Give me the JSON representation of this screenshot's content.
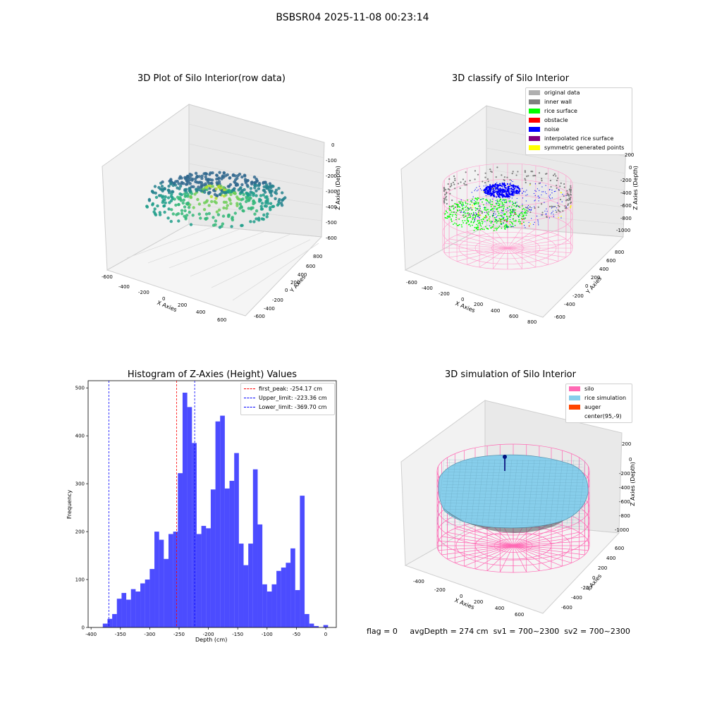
{
  "figure": {
    "suptitle": "BSBSR04 2025-11-08 00:23:14"
  },
  "plot1": {
    "title": "3D Plot of Silo Interior(row data)",
    "xlabel": "X Axies",
    "ylabel": "Y Axies",
    "zlabel": "Z Axies (Depth)",
    "xticks": [
      "-600",
      "-400",
      "-200",
      "0",
      "200",
      "400",
      "600"
    ],
    "yticks": [
      "800",
      "600",
      "400",
      "200",
      "0",
      "-200",
      "-400",
      "-600"
    ],
    "zticks": [
      "0",
      "-100",
      "-200",
      "-300",
      "-400",
      "-500",
      "-600"
    ],
    "colormap": [
      "#fde725",
      "#b5de2b",
      "#6ece58",
      "#35b779",
      "#1f9e89",
      "#26828e",
      "#31688e"
    ]
  },
  "plot2": {
    "title": "3D classify of Silo Interior",
    "xlabel": "X Axies",
    "ylabel": "Y Axies",
    "zlabel": "Z Axies (Depth)",
    "xticks": [
      "-600",
      "-400",
      "-200",
      "0",
      "200",
      "400",
      "600",
      "800"
    ],
    "yticks": [
      "800",
      "600",
      "400",
      "200",
      "0",
      "-200",
      "-400",
      "-600"
    ],
    "zticks": [
      "200",
      "0",
      "-200",
      "-400",
      "-600",
      "-800",
      "-1000"
    ],
    "legend": [
      {
        "label": "original data",
        "color": "#b0b0b0"
      },
      {
        "label": "inner wall",
        "color": "#808080"
      },
      {
        "label": "rice surface",
        "color": "#00ff00"
      },
      {
        "label": "obstacle",
        "color": "#ff0000"
      },
      {
        "label": "noise",
        "color": "#0000ff"
      },
      {
        "label": "interpolated rice surface",
        "color": "#800080"
      },
      {
        "label": "symmetric generated points",
        "color": "#ffff00"
      }
    ]
  },
  "plot4": {
    "title": "3D simulation of Silo Interior",
    "xlabel": "X Axies",
    "ylabel": "Y Axies",
    "zlabel": "Z Axies (Depth)",
    "xticks": [
      "-400",
      "-200",
      "0",
      "200",
      "400",
      "600"
    ],
    "yticks": [
      "600",
      "400",
      "200",
      "0",
      "-200",
      "-400",
      "-600"
    ],
    "zticks": [
      "200",
      "0",
      "-200",
      "-400",
      "-600",
      "-800",
      "-1000"
    ],
    "legend": [
      {
        "label": "silo",
        "color": "#ff69b4"
      },
      {
        "label": "rice simulation",
        "color": "#87ceeb"
      },
      {
        "label": "auger",
        "color": "#ff4500"
      },
      {
        "label": "center(95,-9)",
        "color": ""
      }
    ]
  },
  "chart_data": [
    {
      "type": "bar",
      "title": "Histogram of Z-Axies (Height) Values",
      "xlabel": "Depth (cm)",
      "ylabel": "Frequency",
      "xlim": [
        -400,
        0
      ],
      "ylim": [
        0,
        515
      ],
      "xticks": [
        -400,
        -350,
        -300,
        -250,
        -200,
        -150,
        -100,
        -50,
        0
      ],
      "yticks": [
        0,
        100,
        200,
        300,
        400,
        500
      ],
      "bin_width": 8,
      "bar_color": "#0000ff",
      "bin_starts": [
        -380,
        -372,
        -364,
        -356,
        -348,
        -340,
        -332,
        -324,
        -316,
        -308,
        -300,
        -292,
        -284,
        -276,
        -268,
        -260,
        -252,
        -244,
        -236,
        -228,
        -220,
        -212,
        -204,
        -196,
        -188,
        -180,
        -172,
        -164,
        -156,
        -148,
        -140,
        -132,
        -124,
        -116,
        -108,
        -100,
        -92,
        -84,
        -76,
        -68,
        -60,
        -52,
        -44,
        -36,
        -28,
        -20,
        -12,
        -4
      ],
      "values": [
        8,
        18,
        28,
        60,
        72,
        58,
        80,
        75,
        92,
        100,
        122,
        200,
        183,
        143,
        195,
        200,
        322,
        490,
        460,
        385,
        195,
        212,
        207,
        288,
        430,
        442,
        290,
        306,
        364,
        175,
        130,
        175,
        330,
        215,
        90,
        75,
        90,
        118,
        125,
        135,
        165,
        78,
        275,
        28,
        8,
        3,
        0,
        5
      ],
      "lines": [
        {
          "label": "first_peak: -254.17 cm",
          "x": -254.17,
          "color": "#ff0000"
        },
        {
          "label": "Upper_limit: -223.36 cm",
          "x": -223.36,
          "color": "#0000ff"
        },
        {
          "label": "Lower_limit: -369.70 cm",
          "x": -369.7,
          "color": "#0000ff"
        }
      ],
      "legend_position": "upper right"
    }
  ],
  "status": {
    "flag": "flag = 0",
    "avg": "avgDepth = 274 cm",
    "sv1": "sv1 = 700~2300",
    "sv2": "sv2 = 700~2300"
  }
}
